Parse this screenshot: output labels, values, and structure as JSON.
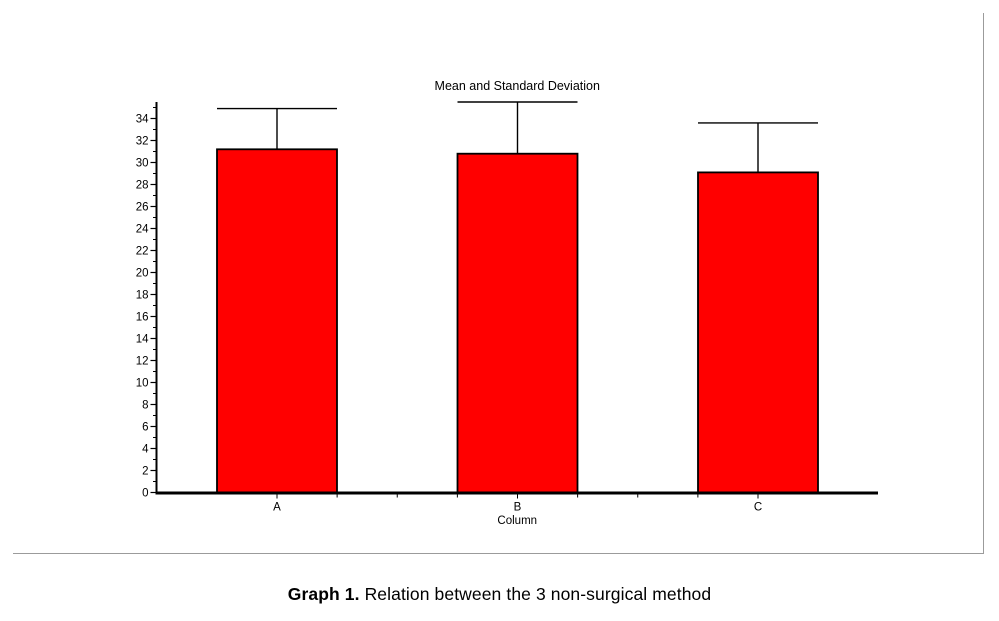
{
  "page": {
    "background": "#ffffff",
    "frame_border_color": "#9b9b9b"
  },
  "chart_data": {
    "type": "bar",
    "title": "Mean and Standard Deviation",
    "xlabel": "Column",
    "ylabel": "",
    "categories": [
      "A",
      "B",
      "C"
    ],
    "series": [
      {
        "name": "Mean",
        "values": [
          31.2,
          30.8,
          29.1
        ]
      }
    ],
    "sd_upper": [
      3.7,
      4.7,
      4.5
    ],
    "error_bars": "upper_only_with_caps",
    "ylim": [
      0,
      35.5
    ],
    "ytick_major_step": 2,
    "ytick_minor_step": 1,
    "ytick_labels": [
      "0",
      "2",
      "4",
      "6",
      "8",
      "10",
      "12",
      "14",
      "16",
      "18",
      "20",
      "22",
      "24",
      "26",
      "28",
      "30",
      "32",
      "34"
    ],
    "grid": false,
    "legend": "none",
    "bar_color": "#ff0000",
    "bar_border_color": "#000000",
    "axis_color": "#000000",
    "text_color": "#000000"
  },
  "caption": {
    "label": "Graph 1.",
    "text": "Relation between the 3 non-surgical method"
  }
}
